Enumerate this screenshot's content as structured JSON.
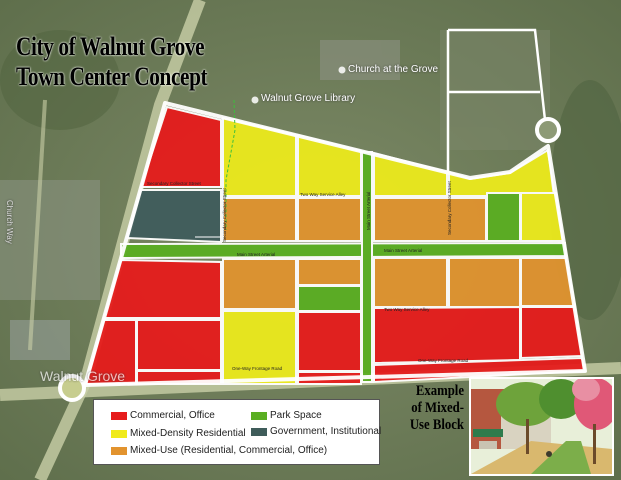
{
  "title": {
    "line1": "City of Walnut Grove",
    "line2": "Town Center Concept"
  },
  "map_labels": {
    "church": "Church at the Grove",
    "library": "Walnut Grove Library",
    "church_way": "Church Way",
    "walnut_grove": "Walnut Grove"
  },
  "street_labels": {
    "secondary_collector_1": "Secondary Collector Street",
    "secondary_collector_2": "Secondary Collector Street",
    "secondary_collector_3": "Secondary Collector Street",
    "two_way_alley_1": "Two Way Service Alley",
    "two_way_alley_2": "Two Way Service Alley",
    "main_street_1": "Main Street Arterial",
    "main_street_2": "Main Street Arterial",
    "main_street_vertical": "Main Street Arterial",
    "frontage_1": "One-Way Frontage Road",
    "frontage_2": "One-Way Frontage Road"
  },
  "legend": [
    {
      "label": "Commercial, Office",
      "color": "#e61c1c"
    },
    {
      "label": "Park Space",
      "color": "#5aae22"
    },
    {
      "label": "Mixed-Density Residential",
      "color": "#f0ea1a"
    },
    {
      "label": "Government, Institutional",
      "color": "#3f5c5a"
    },
    {
      "label": "Mixed-Use (Residential, Commercial, Office)",
      "color": "#e2932e"
    }
  ],
  "inset": {
    "title": "Example of Mixed-Use Block"
  },
  "colors": {
    "commercial": "#e61c1c",
    "residential": "#ecea1c",
    "mixed_use": "#e0932f",
    "park": "#5aae22",
    "government": "#405d5c",
    "road": "#ffffff"
  }
}
